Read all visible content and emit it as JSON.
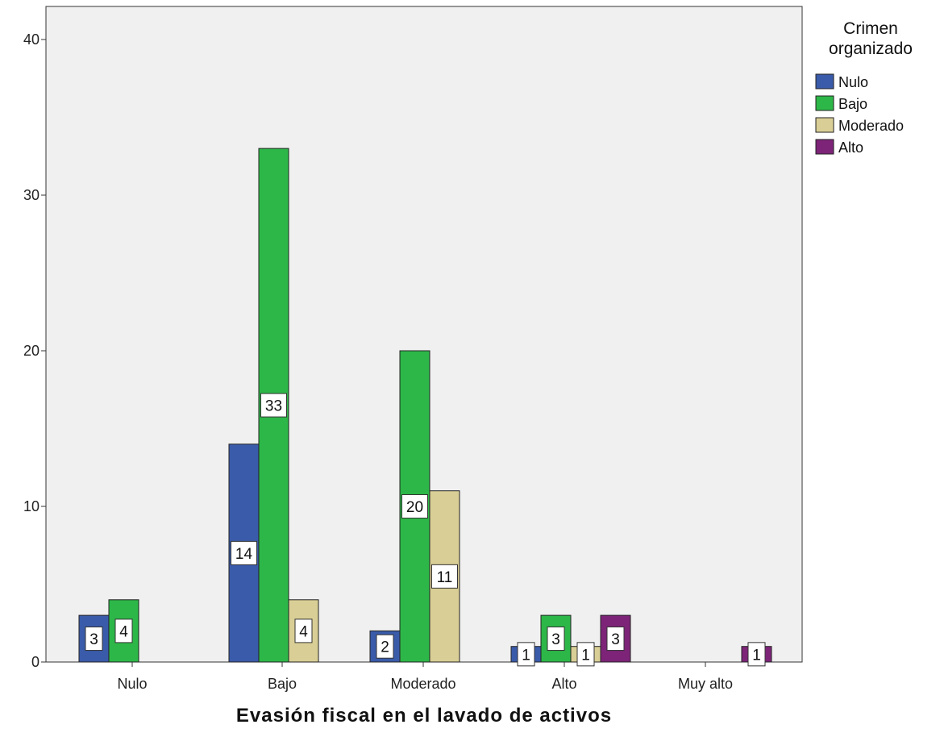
{
  "chart_data": {
    "type": "bar",
    "xlabel": "Evasión fiscal en el lavado de activos",
    "ylabel": "",
    "ylim": [
      0,
      40
    ],
    "yticks": [
      0,
      10,
      20,
      30,
      40
    ],
    "grid": false,
    "legend_position": "right",
    "legend_title_lines": [
      "Crimen",
      "organizado"
    ],
    "categories": [
      "Nulo",
      "Bajo",
      "Moderado",
      "Alto",
      "Muy alto"
    ],
    "series": [
      {
        "name": "Nulo",
        "color": "#3a5ba9",
        "values": [
          3,
          14,
          2,
          1,
          null
        ]
      },
      {
        "name": "Bajo",
        "color": "#2db748",
        "values": [
          4,
          33,
          20,
          3,
          null
        ]
      },
      {
        "name": "Moderado",
        "color": "#d9cf96",
        "values": [
          null,
          4,
          11,
          1,
          null
        ]
      },
      {
        "name": "Alto",
        "color": "#7d2478",
        "values": [
          null,
          null,
          null,
          3,
          1
        ]
      }
    ]
  }
}
